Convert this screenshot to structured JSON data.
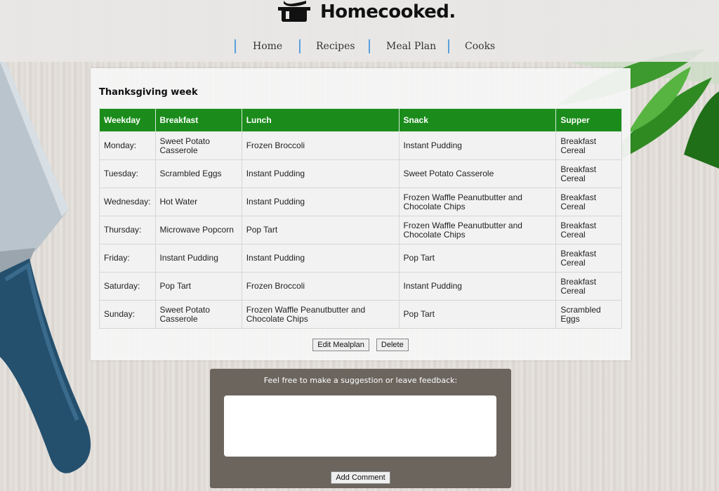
{
  "site": {
    "name": "Homecooked.",
    "logo_icon": "cooking-pot-icon"
  },
  "nav": {
    "items": [
      {
        "label": "Home"
      },
      {
        "label": "Recipes"
      },
      {
        "label": "Meal Plan"
      },
      {
        "label": "Cooks"
      }
    ],
    "separator_color": "#5aa0dc"
  },
  "mealplan": {
    "title": "Thanksgiving week",
    "header_color": "#1b8c1b",
    "columns": [
      "Weekday",
      "Breakfast",
      "Lunch",
      "Snack",
      "Supper"
    ],
    "rows": [
      [
        "Monday:",
        "Sweet Potato Casserole",
        "Frozen Broccoli",
        "Instant Pudding",
        "Breakfast Cereal"
      ],
      [
        "Tuesday:",
        "Scrambled Eggs",
        "Instant Pudding",
        "Sweet Potato Casserole",
        "Breakfast Cereal"
      ],
      [
        "Wednesday:",
        "Hot Water",
        "Instant Pudding",
        "Frozen Waffle Peanutbutter and Chocolate Chips",
        "Breakfast Cereal"
      ],
      [
        "Thursday:",
        "Microwave Popcorn",
        "Pop Tart",
        "Frozen Waffle Peanutbutter and Chocolate Chips",
        "Breakfast Cereal"
      ],
      [
        "Friday:",
        "Instant Pudding",
        "Instant Pudding",
        "Pop Tart",
        "Breakfast Cereal"
      ],
      [
        "Saturday:",
        "Pop Tart",
        "Frozen Broccoli",
        "Instant Pudding",
        "Breakfast Cereal"
      ],
      [
        "Sunday:",
        "Sweet Potato Casserole",
        "Frozen Waffle Peanutbutter and Chocolate Chips",
        "Pop Tart",
        "Scrambled Eggs"
      ]
    ],
    "edit_label": "Edit Mealplan",
    "delete_label": "Delete"
  },
  "feedback": {
    "prompt": "Feel free to make a suggestion or leave feedback:",
    "comment_value": "",
    "submit_label": "Add Comment"
  }
}
